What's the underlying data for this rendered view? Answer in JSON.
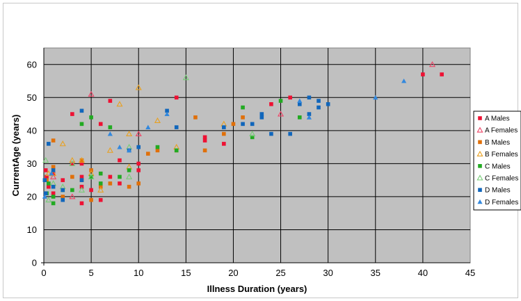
{
  "chart_data": {
    "type": "scatter",
    "title": "",
    "xlabel": "Illness Duration (years)",
    "ylabel": "CurrentAge (years)",
    "xlim": [
      0,
      45
    ],
    "ylim": [
      0,
      65
    ],
    "xticks": [
      0,
      5,
      10,
      15,
      20,
      25,
      30,
      35,
      40,
      45
    ],
    "yticks": [
      0,
      10,
      20,
      30,
      40,
      50,
      60
    ],
    "grid": true,
    "plot_background": "#c0c0c0",
    "legend_position": "right",
    "series": [
      {
        "name": "A Males",
        "color": "#ee1133",
        "marker": "square",
        "x": [
          0.2,
          0.3,
          0.5,
          1,
          1,
          2,
          3,
          3,
          4,
          4,
          4,
          4,
          5,
          6,
          6,
          7,
          7,
          8,
          8,
          10,
          10,
          14,
          17,
          17,
          19,
          24,
          26,
          40,
          42
        ],
        "y": [
          28,
          26,
          23,
          21,
          27,
          25,
          45,
          30,
          30,
          23,
          18,
          26,
          22,
          19,
          42,
          49,
          26,
          31,
          24,
          30,
          28,
          50,
          38,
          37,
          36,
          48,
          50,
          57,
          57
        ]
      },
      {
        "name": "A Females",
        "color": "#ee4466",
        "marker": "triangle-open",
        "x": [
          1,
          3,
          5,
          10,
          25,
          41
        ],
        "y": [
          26,
          20,
          51,
          39,
          45,
          60
        ]
      },
      {
        "name": "B Males",
        "color": "#e0700a",
        "marker": "square",
        "x": [
          0.3,
          1,
          1,
          2,
          3,
          4,
          4,
          5,
          5,
          6,
          7,
          9,
          10,
          11,
          12,
          14,
          16,
          17,
          19,
          20,
          21
        ],
        "y": [
          25,
          29,
          37,
          20,
          26,
          31,
          25,
          19,
          28,
          23,
          24,
          23,
          24,
          33,
          34,
          34,
          44,
          34,
          39,
          42,
          44
        ]
      },
      {
        "name": "B Females",
        "color": "#e8a020",
        "marker": "triangle-open",
        "x": [
          0.5,
          1,
          2,
          3,
          4,
          5,
          6,
          7,
          8,
          9,
          9,
          10,
          12,
          14,
          19
        ],
        "y": [
          27,
          27,
          36,
          31,
          31,
          27,
          22,
          34,
          48,
          29,
          39,
          53,
          43,
          35,
          42
        ]
      },
      {
        "name": "C Males",
        "color": "#22aa22",
        "marker": "square",
        "x": [
          0.3,
          0.5,
          1,
          1,
          2,
          3,
          4,
          5,
          5,
          6,
          6,
          7,
          8,
          9,
          12,
          14,
          21,
          22,
          25,
          27
        ],
        "y": [
          21,
          24,
          18,
          20,
          22,
          22,
          42,
          44,
          26,
          24,
          27,
          41,
          26,
          28,
          35,
          34,
          47,
          38,
          49,
          44
        ]
      },
      {
        "name": "C Females",
        "color": "#77cc77",
        "marker": "triangle-open",
        "x": [
          0.2,
          0.5,
          1,
          2,
          3,
          4,
          5,
          9,
          9,
          15,
          22
        ],
        "y": [
          31,
          19,
          24,
          23,
          30,
          22,
          26,
          26,
          35,
          56,
          39
        ]
      },
      {
        "name": "D Males",
        "color": "#1166bb",
        "marker": "square",
        "x": [
          0.1,
          0.2,
          0.5,
          1,
          1,
          2,
          2,
          4,
          4,
          9,
          10,
          13,
          14,
          19,
          21,
          22,
          23,
          23,
          24,
          26,
          27,
          28,
          28,
          29,
          29,
          30
        ],
        "y": [
          25,
          21,
          36,
          28,
          23,
          22,
          19,
          46,
          25,
          34,
          35,
          46,
          41,
          41,
          42,
          42,
          44,
          45,
          39,
          39,
          48,
          50,
          45,
          47,
          49,
          48
        ]
      },
      {
        "name": "D Females",
        "color": "#3388dd",
        "marker": "triangle",
        "x": [
          0.1,
          0.8,
          7,
          8,
          9,
          11,
          13,
          27,
          28,
          35,
          38
        ],
        "y": [
          20,
          27,
          39,
          35,
          34,
          41,
          45,
          49,
          44,
          50,
          55
        ]
      }
    ]
  }
}
